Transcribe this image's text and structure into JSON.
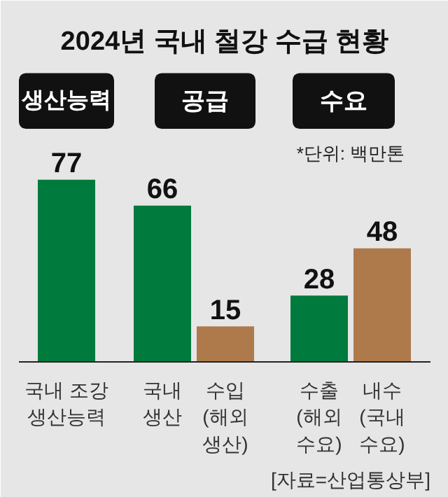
{
  "chart_data": {
    "type": "bar",
    "title": "2024년 국내 철강 수급 현황",
    "categories": [
      "국내 조강\n생산능력",
      "국내\n생산",
      "수입\n(해외\n생산)",
      "수출\n(해외\n수요)",
      "내수\n(국내\n수요)"
    ],
    "values": [
      77,
      66,
      15,
      28,
      48
    ],
    "colors": [
      "#007a3d",
      "#007a3d",
      "#ae7a4c",
      "#007a3d",
      "#ae7a4c"
    ],
    "data_labels": true,
    "annotations": [
      "생산능력",
      "공급",
      "수요",
      "*단위: 백만톤",
      "[자료=산업통상부]"
    ]
  }
}
